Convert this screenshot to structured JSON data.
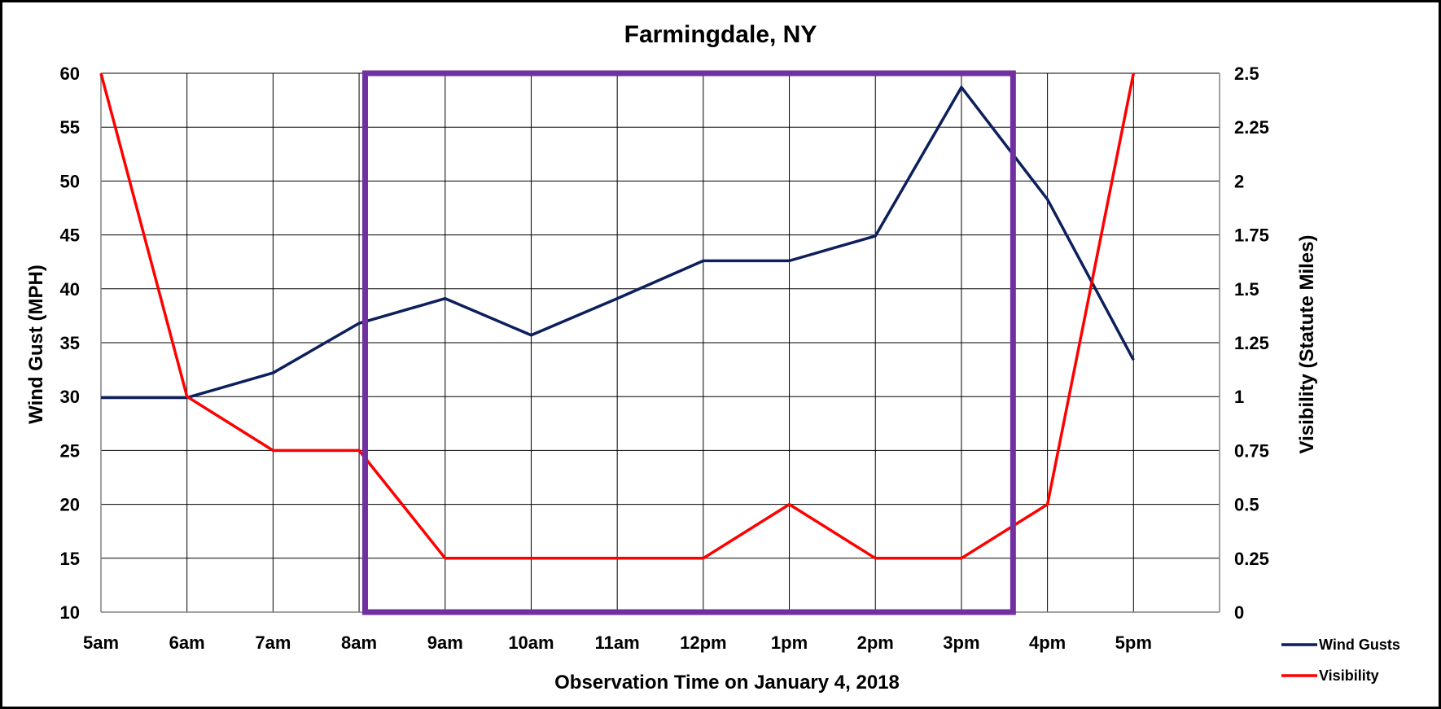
{
  "chart_data": {
    "type": "line",
    "title": "Farmingdale, NY",
    "xlabel": "Observation Time on January 4, 2018",
    "ylabel": "Wind Gust (MPH)",
    "ylabel_right": "Visibility (Statute Miles)",
    "categories": [
      "5am",
      "6am",
      "7am",
      "8am",
      "9am",
      "10am",
      "11am",
      "12pm",
      "1pm",
      "2pm",
      "3pm",
      "4pm",
      "5pm"
    ],
    "ylim": [
      10,
      60
    ],
    "yticks": [
      "60",
      "55",
      "50",
      "45",
      "40",
      "35",
      "30",
      "25",
      "20",
      "15",
      "10"
    ],
    "ylim_right": [
      0,
      2.5
    ],
    "yticks_right": [
      "2.5",
      "2.25",
      "2",
      "1.75",
      "1.5",
      "1.25",
      "1",
      "0.75",
      "0.5",
      "0.25",
      "0"
    ],
    "grid": true,
    "legend_position": "bottom-right",
    "series": [
      {
        "name": "Wind Gusts",
        "axis": "left",
        "color": "#0d1f5c",
        "values": [
          29.9,
          29.9,
          32.2,
          36.8,
          39.1,
          35.7,
          39.1,
          42.6,
          42.6,
          44.9,
          58.7,
          48.3,
          33.4
        ]
      },
      {
        "name": "Visibility",
        "axis": "right",
        "color": "#ff0000",
        "values": [
          2.5,
          1.0,
          0.75,
          0.75,
          0.25,
          0.25,
          0.25,
          0.25,
          0.5,
          0.25,
          0.25,
          0.5,
          2.5
        ]
      }
    ],
    "annotations": [
      {
        "type": "box",
        "color": "#7030a0",
        "x_from": 8.07,
        "x_to": 15.6,
        "y_from": 10,
        "y_to": 60
      }
    ]
  }
}
